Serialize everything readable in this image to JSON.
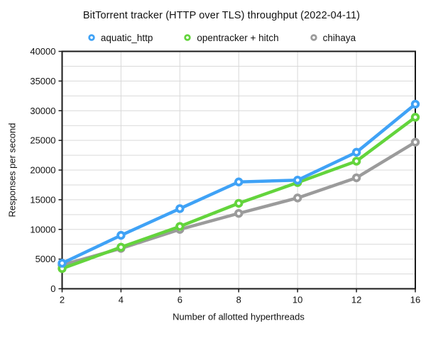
{
  "page": {
    "background": "#ffffff"
  },
  "chart_data": {
    "type": "line",
    "title": "BitTorrent tracker (HTTP over TLS) throughput (2022-04-11)",
    "xlabel": "Number of allotted hyperthreads",
    "ylabel": "Responses per second",
    "categories": [
      2,
      4,
      6,
      8,
      10,
      12,
      16
    ],
    "series": [
      {
        "name": "aquatic_http",
        "color": "#3FA2F6",
        "values": [
          4300,
          9000,
          13500,
          18000,
          18300,
          23000,
          31100
        ]
      },
      {
        "name": "opentracker + hitch",
        "color": "#63D43C",
        "values": [
          3400,
          7000,
          10500,
          14400,
          17900,
          21500,
          28900
        ]
      },
      {
        "name": "chihaya",
        "color": "#9B9B9B",
        "values": [
          4000,
          6800,
          10000,
          12700,
          15300,
          18700,
          24700
        ]
      }
    ],
    "ylim": [
      0,
      40000
    ],
    "y_major_step": 5000,
    "y_minor_step": 2500,
    "x_tick_labels": [
      "2",
      "4",
      "6",
      "8",
      "10",
      "12",
      "16"
    ],
    "y_tick_labels": [
      "0",
      "5000",
      "10000",
      "15000",
      "20000",
      "25000",
      "30000",
      "35000",
      "40000"
    ],
    "grid": true,
    "legend_position": "top",
    "marker_style": "open-circle",
    "colors": {
      "axis": "#1a1a1a",
      "grid": "#d9d9d9",
      "tick_label": "#111111",
      "marker_fill": "#ffffff"
    }
  }
}
